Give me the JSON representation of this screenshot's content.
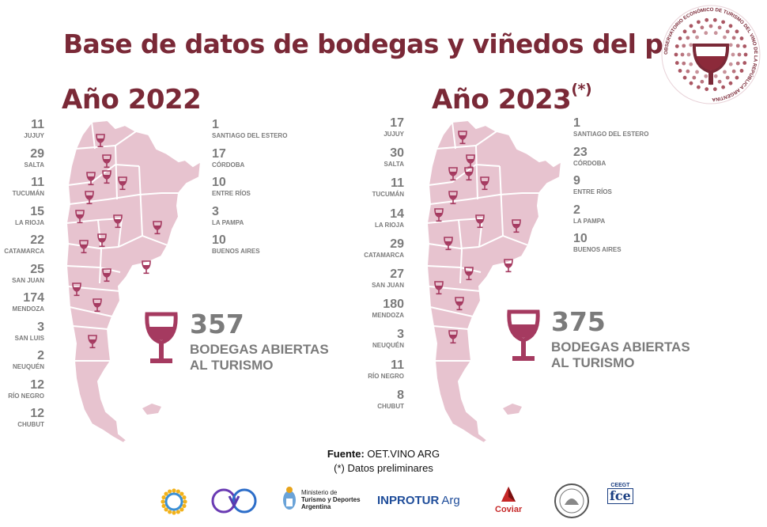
{
  "title": "Base de datos de bodegas y viñedos del país",
  "seal_text": "OBSERVATORIO ECONÓMICO DE TURISMO DEL VINO DE LA REPÚBLICA ARGENTINA",
  "year_2022": {
    "label": "Año 2022",
    "left_stats": [
      {
        "num": "11",
        "name": "JUJUY"
      },
      {
        "num": "29",
        "name": "SALTA"
      },
      {
        "num": "11",
        "name": "TUCUMÁN"
      },
      {
        "num": "15",
        "name": "LA RIOJA"
      },
      {
        "num": "22",
        "name": "CATAMARCA"
      },
      {
        "num": "25",
        "name": "SAN JUAN"
      },
      {
        "num": "174",
        "name": "MENDOZA"
      },
      {
        "num": "3",
        "name": "SAN LUIS"
      },
      {
        "num": "2",
        "name": "NEUQUÉN"
      },
      {
        "num": "12",
        "name": "RÍO NEGRO"
      },
      {
        "num": "12",
        "name": "CHUBUT"
      }
    ],
    "right_stats": [
      {
        "num": "1",
        "name": "SANTIAGO DEL ESTERO"
      },
      {
        "num": "17",
        "name": "CÓRDOBA"
      },
      {
        "num": "10",
        "name": "ENTRE RÍOS"
      },
      {
        "num": "3",
        "name": "LA PAMPA"
      },
      {
        "num": "10",
        "name": "BUENOS AIRES"
      }
    ],
    "total": "357",
    "total_label": "BODEGAS ABIERTAS AL TURISMO"
  },
  "year_2023": {
    "label": "Año 2023",
    "label_suffix": "(*)",
    "left_stats": [
      {
        "num": "17",
        "name": "JUJUY"
      },
      {
        "num": "30",
        "name": "SALTA"
      },
      {
        "num": "11",
        "name": "TUCUMÁN"
      },
      {
        "num": "14",
        "name": "LA RIOJA"
      },
      {
        "num": "29",
        "name": "CATAMARCA"
      },
      {
        "num": "27",
        "name": "SAN JUAN"
      },
      {
        "num": "180",
        "name": "MENDOZA"
      },
      {
        "num": "3",
        "name": "NEUQUÉN"
      },
      {
        "num": "11",
        "name": "RÍO NEGRO"
      },
      {
        "num": "8",
        "name": "CHUBUT"
      }
    ],
    "right_stats": [
      {
        "num": "1",
        "name": "SANTIAGO DEL ESTERO"
      },
      {
        "num": "23",
        "name": "CÓRDOBA"
      },
      {
        "num": "9",
        "name": "ENTRE RÍOS"
      },
      {
        "num": "2",
        "name": "LA PAMPA"
      },
      {
        "num": "10",
        "name": "BUENOS AIRES"
      }
    ],
    "total": "375",
    "total_label": "BODEGAS ABIERTAS AL TURISMO"
  },
  "source": {
    "label": "Fuente:",
    "value": "OET.VINO ARG",
    "note": "(*) Datos preliminares"
  },
  "logos": {
    "ministerio_line1": "Ministerio de",
    "ministerio_line2": "Turismo y Deportes",
    "ministerio_line3": "Argentina",
    "inprotur": "INPROTUR",
    "inprotur_suffix": "Arg",
    "coviar": "Coviar",
    "ceegt": "CEEGT",
    "fce": "fce"
  },
  "colors": {
    "brand": "#7a2937",
    "map_fill": "#e7c3cf",
    "glass": "#a53a60",
    "text_gray": "#7b7b7b"
  }
}
